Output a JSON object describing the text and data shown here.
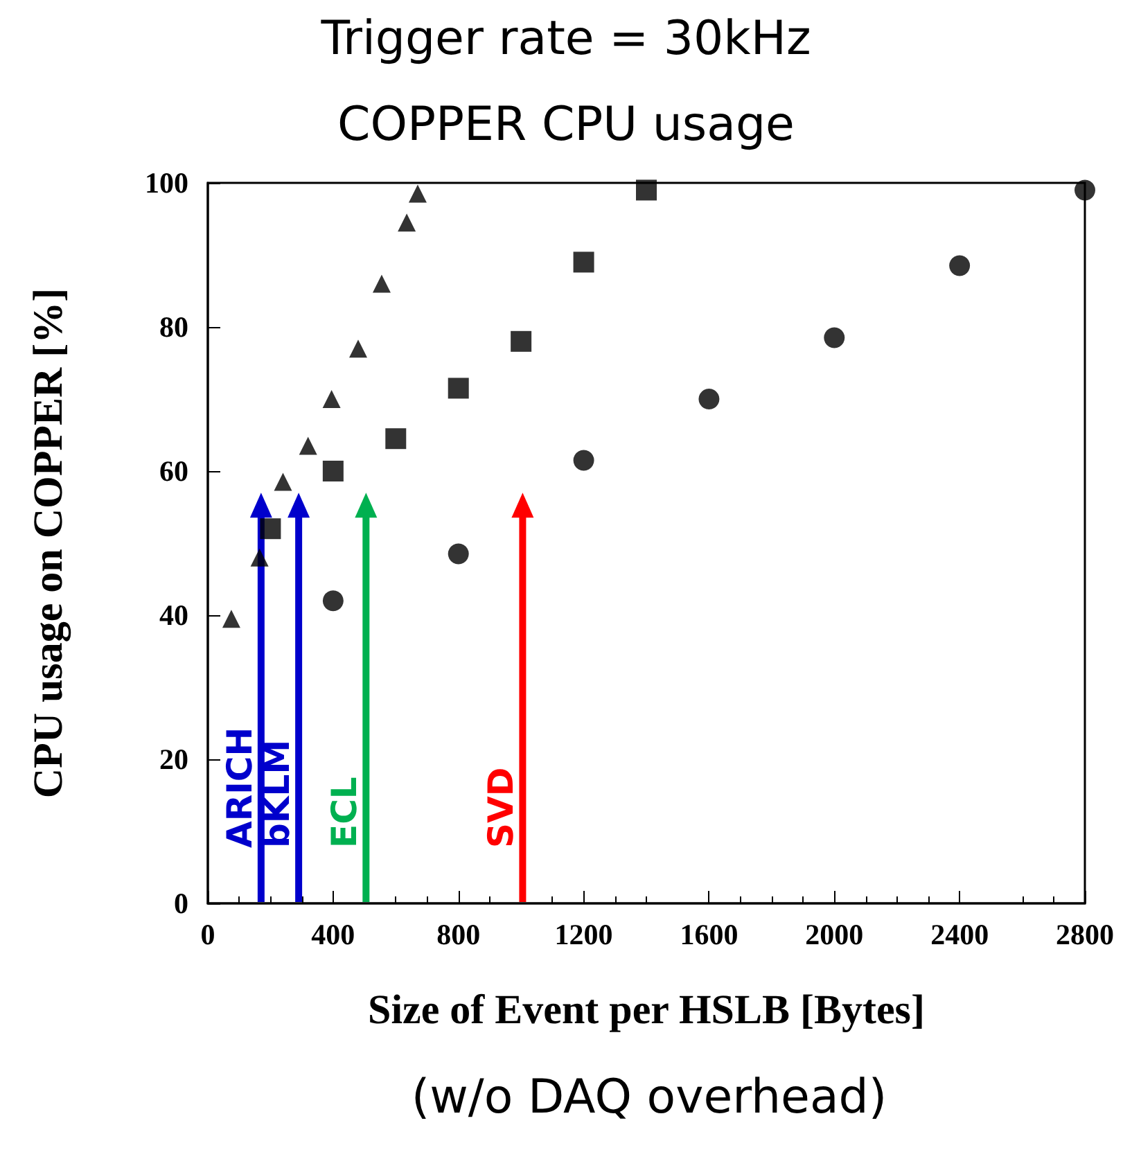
{
  "chart_data": {
    "type": "scatter",
    "title": "Trigger rate  = 30kHz",
    "subtitle": "COPPER CPU usage",
    "xlabel": "Size of Event per HSLB [Bytes]",
    "ylabel": "CPU usage on COPPER [%]",
    "series": [
      {
        "color": "#000000",
        "marker": "triangle",
        "x": [
          75,
          165,
          240,
          320,
          395,
          480,
          555,
          635,
          670
        ],
        "values": [
          39.5,
          48,
          58.5,
          63.5,
          70,
          77,
          86,
          94.5,
          98.5
        ]
      },
      {
        "color": "#000000",
        "marker": "square",
        "x": [
          200,
          400,
          600,
          800,
          1000,
          1200,
          1400
        ],
        "values": [
          52,
          60,
          64.5,
          71.5,
          78,
          89,
          99
        ]
      },
      {
        "color": "#000000",
        "marker": "circle",
        "x": [
          400,
          800,
          1200,
          1600,
          2000,
          2400,
          2800
        ],
        "values": [
          42,
          48.5,
          61.5,
          70,
          78.5,
          88.5,
          99
        ]
      }
    ],
    "xlim": [
      0,
      2800
    ],
    "xticks": [
      0,
      400,
      800,
      1200,
      1600,
      2000,
      2400,
      2800
    ],
    "ylim": [
      0,
      100
    ],
    "yticks": [
      0,
      20,
      40,
      60,
      80,
      100
    ],
    "grid": false,
    "ref_lines": [
      {
        "axis": "x",
        "value": 170,
        "label": "ARICH",
        "color": "#0000cc"
      },
      {
        "axis": "x",
        "value": 290,
        "label": "bKLM",
        "color": "#0000cc"
      },
      {
        "axis": "x",
        "value": 505,
        "label": "ECL",
        "color": "#00b050"
      },
      {
        "axis": "x",
        "value": 1005,
        "label": "SVD",
        "color": "#ff0000"
      }
    ],
    "annotations": [
      "(w/o DAQ overhead)"
    ]
  }
}
